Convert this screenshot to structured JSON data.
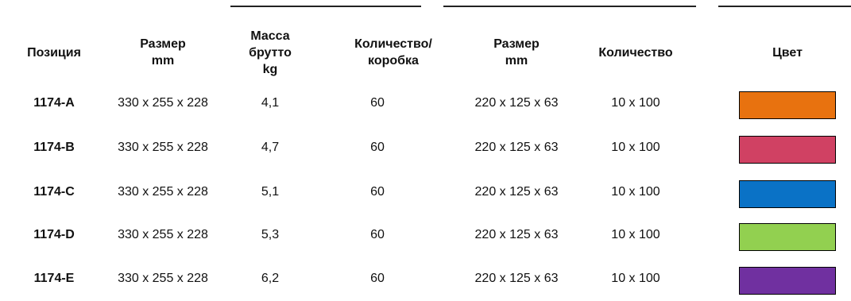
{
  "columns": [
    {
      "key": "position",
      "label": "Позиция"
    },
    {
      "key": "size",
      "label": "Размер\nmm"
    },
    {
      "key": "gross_mass",
      "label": "Масса\nбрутто\nkg"
    },
    {
      "key": "qty_box",
      "label": "Количество/\nкоробка"
    },
    {
      "key": "size2",
      "label": "Размер\nmm"
    },
    {
      "key": "qty",
      "label": "Количество"
    },
    {
      "key": "color",
      "label": "Цвет"
    }
  ],
  "rows": [
    {
      "position": "1174-A",
      "size": "330 x 255 x 228",
      "gross_mass": "4,1",
      "qty_box": "60",
      "size2": "220 x 125 x 63",
      "qty": "10 x 100",
      "color": "#e8720f"
    },
    {
      "position": "1174-B",
      "size": "330 x 255 x 228",
      "gross_mass": "4,7",
      "qty_box": "60",
      "size2": "220 x 125 x 63",
      "qty": "10 x 100",
      "color": "#d04163"
    },
    {
      "position": "1174-C",
      "size": "330 x 255 x 228",
      "gross_mass": "5,1",
      "qty_box": "60",
      "size2": "220 x 125 x 63",
      "qty": "10 x 100",
      "color": "#0a72c6"
    },
    {
      "position": "1174-D",
      "size": "330 x 255 x 228",
      "gross_mass": "5,3",
      "qty_box": "60",
      "size2": "220 x 125 x 63",
      "qty": "10 x 100",
      "color": "#92d050"
    },
    {
      "position": "1174-E",
      "size": "330 x 255 x 228",
      "gross_mass": "6,2",
      "qty_box": "60",
      "size2": "220 x 125 x 63",
      "qty": "10 x 100",
      "color": "#7030a0"
    }
  ]
}
